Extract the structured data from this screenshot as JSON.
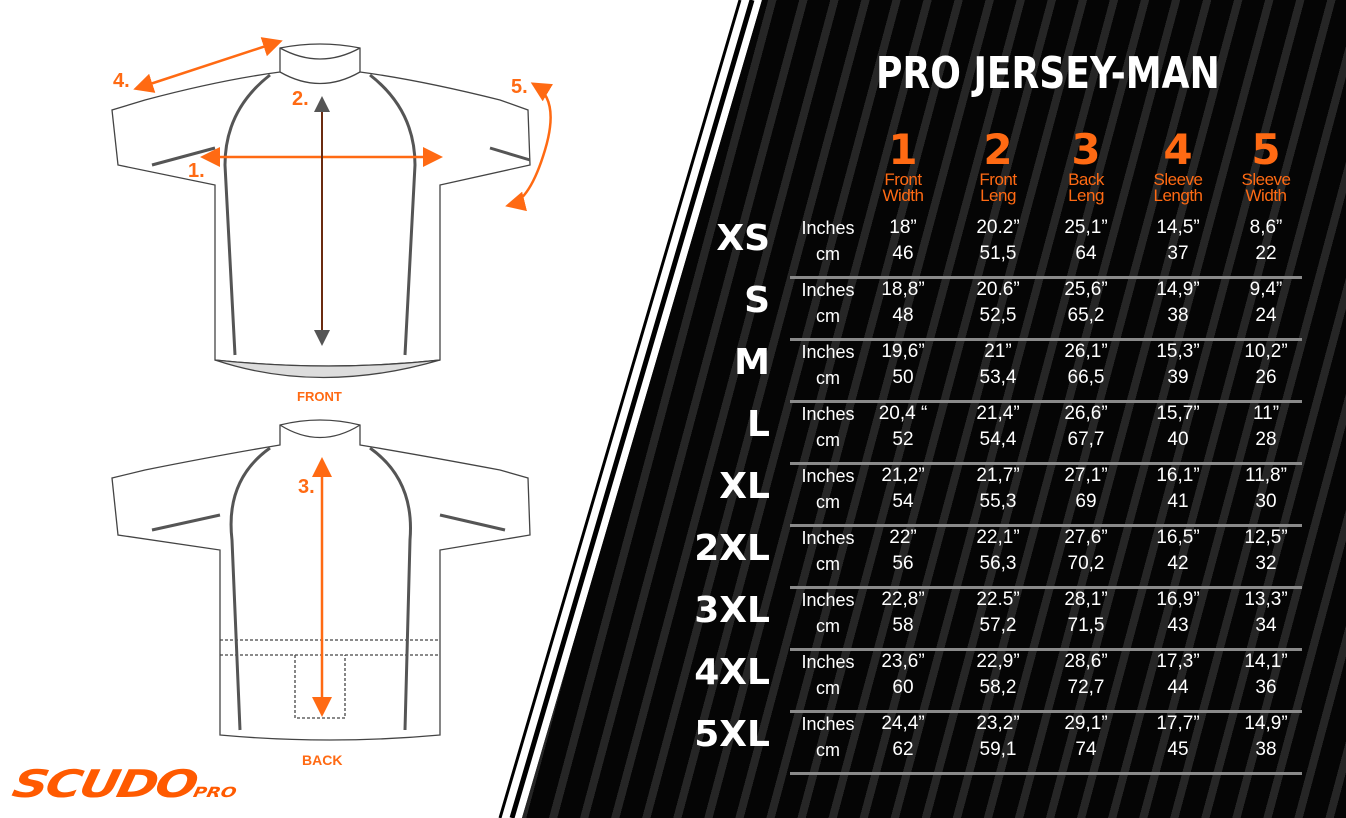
{
  "title": "PRO JERSEY-MAN",
  "colors": {
    "accent": "#ff6a13",
    "background_dark": "#050505",
    "text": "#ffffff"
  },
  "columns": [
    {
      "num": "1",
      "label1": "Front",
      "label2": "Width"
    },
    {
      "num": "2",
      "label1": "Front",
      "label2": "Leng"
    },
    {
      "num": "3",
      "label1": "Back",
      "label2": "Leng"
    },
    {
      "num": "4",
      "label1": "Sleeve",
      "label2": "Length"
    },
    {
      "num": "5",
      "label1": "Sleeve",
      "label2": "Width"
    }
  ],
  "units": {
    "inches": "Inches",
    "cm": "cm"
  },
  "rows": [
    {
      "size": "XS",
      "inches": [
        "18”",
        "20.2”",
        "25,1”",
        "14,5”",
        "8,6”"
      ],
      "cm": [
        "46",
        "51,5",
        "64",
        "37",
        "22"
      ]
    },
    {
      "size": "S",
      "inches": [
        "18,8”",
        "20.6”",
        "25,6”",
        "14,9”",
        "9,4”"
      ],
      "cm": [
        "48",
        "52,5",
        "65,2",
        "38",
        "24"
      ]
    },
    {
      "size": "M",
      "inches": [
        "19,6”",
        "21”",
        "26,1”",
        "15,3”",
        "10,2”"
      ],
      "cm": [
        "50",
        "53,4",
        "66,5",
        "39",
        "26"
      ]
    },
    {
      "size": "L",
      "inches": [
        "20,4 “",
        "21,4”",
        "26,6”",
        "15,7”",
        "11”"
      ],
      "cm": [
        "52",
        "54,4",
        "67,7",
        "40",
        "28"
      ]
    },
    {
      "size": "XL",
      "inches": [
        "21,2”",
        "21,7”",
        "27,1”",
        "16,1”",
        "11,8”"
      ],
      "cm": [
        "54",
        "55,3",
        "69",
        "41",
        "30"
      ]
    },
    {
      "size": "2XL",
      "inches": [
        "22”",
        "22,1”",
        "27,6”",
        "16,5”",
        "12,5”"
      ],
      "cm": [
        "56",
        "56,3",
        "70,2",
        "42",
        "32"
      ]
    },
    {
      "size": "3XL",
      "inches": [
        "22,8”",
        "22.5”",
        "28,1”",
        "16,9”",
        "13,3”"
      ],
      "cm": [
        "58",
        "57,2",
        "71,5",
        "43",
        "34"
      ]
    },
    {
      "size": "4XL",
      "inches": [
        "23,6”",
        "22,9”",
        "28,6”",
        "17,3”",
        "14,1”"
      ],
      "cm": [
        "60",
        "58,2",
        "72,7",
        "44",
        "36"
      ]
    },
    {
      "size": "5XL",
      "inches": [
        "24,4”",
        "23,2”",
        "29,1”",
        "17,7”",
        "14,9”"
      ],
      "cm": [
        "62",
        "59,1",
        "74",
        "45",
        "38"
      ]
    }
  ],
  "diagram": {
    "front_label": "FRONT",
    "back_label": "BACK",
    "markers": [
      "1.",
      "2.",
      "3.",
      "4.",
      "5."
    ]
  },
  "logo": {
    "main": "SCUDO",
    "sub": "PRO"
  }
}
